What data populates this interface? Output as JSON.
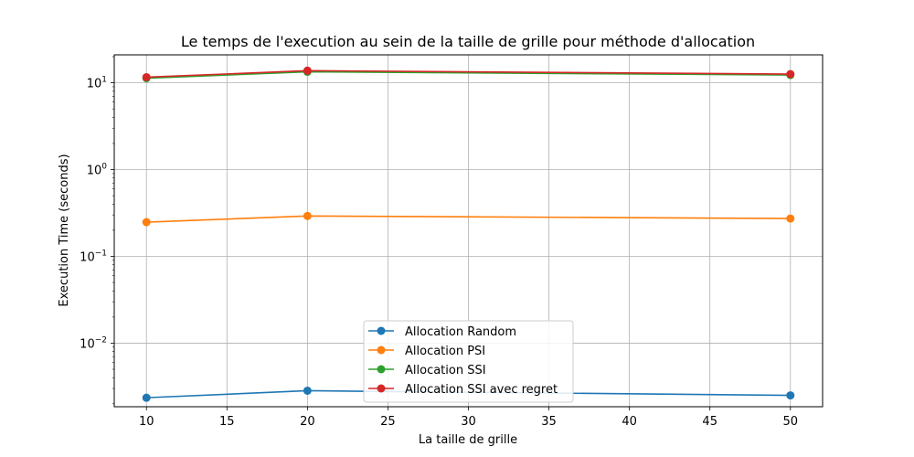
{
  "chart_data": {
    "type": "line",
    "title": "Le temps de l'execution au sein de la taille de grille pour méthode d'allocation",
    "xlabel": "La taille de grille",
    "ylabel": "Execution Time (seconds)",
    "x": [
      10,
      20,
      50
    ],
    "xlim": [
      8,
      52
    ],
    "xticks": [
      10,
      15,
      20,
      25,
      30,
      35,
      40,
      45,
      50
    ],
    "yscale": "log",
    "ylim": [
      0.00185,
      21
    ],
    "yticks": [
      {
        "value": 0.01,
        "base": "10",
        "exp": "−2"
      },
      {
        "value": 0.1,
        "base": "10",
        "exp": "−1"
      },
      {
        "value": 1,
        "base": "10",
        "exp": "0"
      },
      {
        "value": 10,
        "base": "10",
        "exp": "1"
      }
    ],
    "grid": true,
    "legend_position": "lower center",
    "series": [
      {
        "name": "Allocation Random",
        "color": "#1f77b4",
        "values": [
          0.00235,
          0.00283,
          0.0025
        ]
      },
      {
        "name": "Allocation PSI",
        "color": "#ff7f0e",
        "values": [
          0.248,
          0.292,
          0.273
        ]
      },
      {
        "name": "Allocation SSI",
        "color": "#2ca02c",
        "values": [
          11.3,
          13.4,
          12.3
        ]
      },
      {
        "name": "Allocation SSI avec regret",
        "color": "#d62728",
        "values": [
          11.6,
          13.8,
          12.6
        ]
      }
    ]
  }
}
